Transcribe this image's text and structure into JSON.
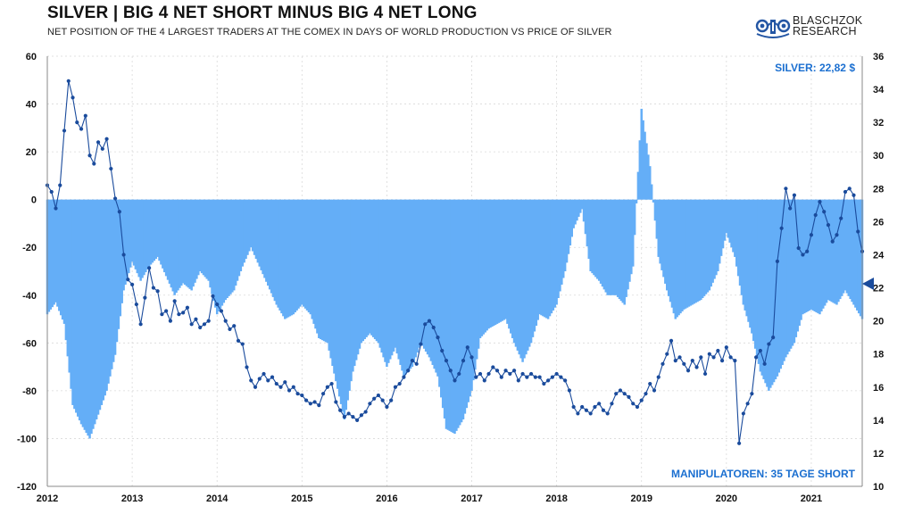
{
  "header": {
    "title": "SILVER | BIG 4 NET SHORT MINUS BIG 4 NET LONG",
    "subtitle": "NET POSITION OF THE 4 LARGEST TRADERS AT THE COMEX IN DAYS OF WORLD PRODUCTION VS PRICE OF SILVER"
  },
  "logo": {
    "line1": "BLASCHZOK",
    "line2": "RESEARCH"
  },
  "annotations": {
    "silver_price": "SILVER: 22,82 $",
    "manipulators": "MANIPULATOREN: 35 TAGE SHORT"
  },
  "colors": {
    "bars": "#64aef7",
    "price_line": "#1a4b9c",
    "annotation": "#1b6fd0",
    "grid": "#d9d9d9"
  },
  "chart_data": {
    "type": "bar",
    "title": "SILVER | BIG 4 NET SHORT MINUS BIG 4 NET LONG",
    "xlabel": "",
    "ylabel": "",
    "y2label": "",
    "ylim": [
      -120,
      60
    ],
    "y2lim": [
      10,
      36
    ],
    "x_ticks": [
      "2012",
      "2013",
      "2014",
      "2015",
      "2016",
      "2017",
      "2018",
      "2019",
      "2020",
      "2021"
    ],
    "y_ticks": [
      60,
      40,
      20,
      0,
      -20,
      -40,
      -60,
      -80,
      -100,
      -120
    ],
    "y2_ticks": [
      36,
      34,
      32,
      30,
      28,
      26,
      24,
      22,
      20,
      18,
      16,
      14,
      12,
      10
    ],
    "grid": true,
    "series": [
      {
        "type": "bar",
        "axis": "left",
        "points": [
          [
            2012.0,
            -48
          ],
          [
            2012.1,
            -43
          ],
          [
            2012.2,
            -52
          ],
          [
            2012.3,
            -86
          ],
          [
            2012.4,
            -94
          ],
          [
            2012.5,
            -100
          ],
          [
            2012.6,
            -90
          ],
          [
            2012.7,
            -80
          ],
          [
            2012.8,
            -65
          ],
          [
            2012.9,
            -38
          ],
          [
            2013.0,
            -26
          ],
          [
            2013.1,
            -34
          ],
          [
            2013.2,
            -28
          ],
          [
            2013.3,
            -24
          ],
          [
            2013.4,
            -32
          ],
          [
            2013.5,
            -40
          ],
          [
            2013.6,
            -35
          ],
          [
            2013.7,
            -38
          ],
          [
            2013.8,
            -30
          ],
          [
            2013.9,
            -34
          ],
          [
            2014.0,
            -48
          ],
          [
            2014.1,
            -42
          ],
          [
            2014.2,
            -38
          ],
          [
            2014.3,
            -28
          ],
          [
            2014.4,
            -20
          ],
          [
            2014.5,
            -28
          ],
          [
            2014.6,
            -36
          ],
          [
            2014.7,
            -44
          ],
          [
            2014.8,
            -50
          ],
          [
            2014.9,
            -48
          ],
          [
            2015.0,
            -44
          ],
          [
            2015.1,
            -48
          ],
          [
            2015.2,
            -58
          ],
          [
            2015.3,
            -60
          ],
          [
            2015.4,
            -76
          ],
          [
            2015.5,
            -92
          ],
          [
            2015.6,
            -72
          ],
          [
            2015.7,
            -60
          ],
          [
            2015.8,
            -56
          ],
          [
            2015.9,
            -60
          ],
          [
            2016.0,
            -70
          ],
          [
            2016.1,
            -62
          ],
          [
            2016.2,
            -74
          ],
          [
            2016.3,
            -70
          ],
          [
            2016.4,
            -60
          ],
          [
            2016.5,
            -66
          ],
          [
            2016.6,
            -74
          ],
          [
            2016.7,
            -96
          ],
          [
            2016.8,
            -98
          ],
          [
            2016.9,
            -92
          ],
          [
            2017.0,
            -80
          ],
          [
            2017.1,
            -58
          ],
          [
            2017.2,
            -54
          ],
          [
            2017.3,
            -52
          ],
          [
            2017.4,
            -50
          ],
          [
            2017.5,
            -60
          ],
          [
            2017.6,
            -68
          ],
          [
            2017.7,
            -60
          ],
          [
            2017.8,
            -48
          ],
          [
            2017.9,
            -50
          ],
          [
            2018.0,
            -44
          ],
          [
            2018.1,
            -30
          ],
          [
            2018.2,
            -12
          ],
          [
            2018.3,
            -4
          ],
          [
            2018.4,
            -30
          ],
          [
            2018.5,
            -34
          ],
          [
            2018.6,
            -40
          ],
          [
            2018.7,
            -40
          ],
          [
            2018.8,
            -44
          ],
          [
            2018.9,
            -28
          ],
          [
            2019.0,
            38
          ],
          [
            2019.1,
            14
          ],
          [
            2019.2,
            -24
          ],
          [
            2019.3,
            -38
          ],
          [
            2019.4,
            -50
          ],
          [
            2019.5,
            -46
          ],
          [
            2019.6,
            -44
          ],
          [
            2019.7,
            -42
          ],
          [
            2019.8,
            -38
          ],
          [
            2019.9,
            -30
          ],
          [
            2020.0,
            -14
          ],
          [
            2020.1,
            -24
          ],
          [
            2020.2,
            -44
          ],
          [
            2020.3,
            -56
          ],
          [
            2020.4,
            -72
          ],
          [
            2020.5,
            -80
          ],
          [
            2020.6,
            -74
          ],
          [
            2020.7,
            -66
          ],
          [
            2020.8,
            -60
          ],
          [
            2020.9,
            -48
          ],
          [
            2021.0,
            -46
          ],
          [
            2021.1,
            -48
          ],
          [
            2021.2,
            -42
          ],
          [
            2021.3,
            -44
          ],
          [
            2021.4,
            -38
          ],
          [
            2021.5,
            -44
          ],
          [
            2021.6,
            -50
          ]
        ]
      },
      {
        "type": "line",
        "axis": "right",
        "points": [
          [
            2012.0,
            28.2
          ],
          [
            2012.05,
            27.8
          ],
          [
            2012.1,
            26.8
          ],
          [
            2012.15,
            28.2
          ],
          [
            2012.2,
            31.5
          ],
          [
            2012.25,
            34.5
          ],
          [
            2012.3,
            33.5
          ],
          [
            2012.35,
            32.0
          ],
          [
            2012.4,
            31.6
          ],
          [
            2012.45,
            32.4
          ],
          [
            2012.5,
            30.0
          ],
          [
            2012.55,
            29.5
          ],
          [
            2012.6,
            30.8
          ],
          [
            2012.65,
            30.4
          ],
          [
            2012.7,
            31.0
          ],
          [
            2012.75,
            29.2
          ],
          [
            2012.8,
            27.4
          ],
          [
            2012.85,
            26.6
          ],
          [
            2012.9,
            24.0
          ],
          [
            2012.95,
            22.5
          ],
          [
            2013.0,
            22.2
          ],
          [
            2013.05,
            21.0
          ],
          [
            2013.1,
            19.8
          ],
          [
            2013.15,
            21.4
          ],
          [
            2013.2,
            23.2
          ],
          [
            2013.25,
            22.0
          ],
          [
            2013.3,
            21.8
          ],
          [
            2013.35,
            20.4
          ],
          [
            2013.4,
            20.6
          ],
          [
            2013.45,
            20.0
          ],
          [
            2013.5,
            21.2
          ],
          [
            2013.55,
            20.4
          ],
          [
            2013.6,
            20.5
          ],
          [
            2013.65,
            20.8
          ],
          [
            2013.7,
            19.8
          ],
          [
            2013.75,
            20.1
          ],
          [
            2013.8,
            19.6
          ],
          [
            2013.85,
            19.8
          ],
          [
            2013.9,
            20.0
          ],
          [
            2013.95,
            21.5
          ],
          [
            2014.0,
            21.0
          ],
          [
            2014.05,
            20.6
          ],
          [
            2014.1,
            20.0
          ],
          [
            2014.15,
            19.5
          ],
          [
            2014.2,
            19.7
          ],
          [
            2014.25,
            18.8
          ],
          [
            2014.3,
            18.6
          ],
          [
            2014.35,
            17.2
          ],
          [
            2014.4,
            16.4
          ],
          [
            2014.45,
            16.0
          ],
          [
            2014.5,
            16.5
          ],
          [
            2014.55,
            16.8
          ],
          [
            2014.6,
            16.4
          ],
          [
            2014.65,
            16.6
          ],
          [
            2014.7,
            16.2
          ],
          [
            2014.75,
            16.0
          ],
          [
            2014.8,
            16.3
          ],
          [
            2014.85,
            15.8
          ],
          [
            2014.9,
            16.0
          ],
          [
            2014.95,
            15.6
          ],
          [
            2015.0,
            15.5
          ],
          [
            2015.05,
            15.2
          ],
          [
            2015.1,
            15.0
          ],
          [
            2015.15,
            15.1
          ],
          [
            2015.2,
            14.9
          ],
          [
            2015.25,
            15.6
          ],
          [
            2015.3,
            16.0
          ],
          [
            2015.35,
            16.2
          ],
          [
            2015.4,
            15.1
          ],
          [
            2015.45,
            14.6
          ],
          [
            2015.5,
            14.2
          ],
          [
            2015.55,
            14.4
          ],
          [
            2015.6,
            14.2
          ],
          [
            2015.65,
            14.0
          ],
          [
            2015.7,
            14.3
          ],
          [
            2015.75,
            14.5
          ],
          [
            2015.8,
            15.0
          ],
          [
            2015.85,
            15.3
          ],
          [
            2015.9,
            15.5
          ],
          [
            2015.95,
            15.2
          ],
          [
            2016.0,
            14.8
          ],
          [
            2016.05,
            15.2
          ],
          [
            2016.1,
            16.0
          ],
          [
            2016.15,
            16.2
          ],
          [
            2016.2,
            16.6
          ],
          [
            2016.25,
            17.0
          ],
          [
            2016.3,
            17.6
          ],
          [
            2016.35,
            17.4
          ],
          [
            2016.4,
            18.6
          ],
          [
            2016.45,
            19.8
          ],
          [
            2016.5,
            20.0
          ],
          [
            2016.55,
            19.6
          ],
          [
            2016.6,
            19.0
          ],
          [
            2016.65,
            18.2
          ],
          [
            2016.7,
            17.6
          ],
          [
            2016.75,
            17.0
          ],
          [
            2016.8,
            16.4
          ],
          [
            2016.85,
            16.8
          ],
          [
            2016.9,
            17.6
          ],
          [
            2016.95,
            18.4
          ],
          [
            2017.0,
            17.8
          ],
          [
            2017.05,
            16.6
          ],
          [
            2017.1,
            16.8
          ],
          [
            2017.15,
            16.4
          ],
          [
            2017.2,
            16.8
          ],
          [
            2017.25,
            17.2
          ],
          [
            2017.3,
            17.0
          ],
          [
            2017.35,
            16.6
          ],
          [
            2017.4,
            17.0
          ],
          [
            2017.45,
            16.8
          ],
          [
            2017.5,
            17.0
          ],
          [
            2017.55,
            16.4
          ],
          [
            2017.6,
            16.8
          ],
          [
            2017.65,
            16.6
          ],
          [
            2017.7,
            16.8
          ],
          [
            2017.75,
            16.6
          ],
          [
            2017.8,
            16.6
          ],
          [
            2017.85,
            16.2
          ],
          [
            2017.9,
            16.4
          ],
          [
            2017.95,
            16.6
          ],
          [
            2018.0,
            16.8
          ],
          [
            2018.05,
            16.6
          ],
          [
            2018.1,
            16.4
          ],
          [
            2018.15,
            15.8
          ],
          [
            2018.2,
            14.8
          ],
          [
            2018.25,
            14.4
          ],
          [
            2018.3,
            14.8
          ],
          [
            2018.35,
            14.6
          ],
          [
            2018.4,
            14.4
          ],
          [
            2018.45,
            14.8
          ],
          [
            2018.5,
            15.0
          ],
          [
            2018.55,
            14.6
          ],
          [
            2018.6,
            14.4
          ],
          [
            2018.65,
            15.0
          ],
          [
            2018.7,
            15.6
          ],
          [
            2018.75,
            15.8
          ],
          [
            2018.8,
            15.6
          ],
          [
            2018.85,
            15.4
          ],
          [
            2018.9,
            15.0
          ],
          [
            2018.95,
            14.8
          ],
          [
            2019.0,
            15.2
          ],
          [
            2019.05,
            15.6
          ],
          [
            2019.1,
            16.2
          ],
          [
            2019.15,
            15.8
          ],
          [
            2019.2,
            16.6
          ],
          [
            2019.25,
            17.4
          ],
          [
            2019.3,
            18.0
          ],
          [
            2019.35,
            18.8
          ],
          [
            2019.4,
            17.6
          ],
          [
            2019.45,
            17.8
          ],
          [
            2019.5,
            17.4
          ],
          [
            2019.55,
            17.0
          ],
          [
            2019.6,
            17.6
          ],
          [
            2019.65,
            17.2
          ],
          [
            2019.7,
            17.8
          ],
          [
            2019.75,
            16.8
          ],
          [
            2019.8,
            18.0
          ],
          [
            2019.85,
            17.8
          ],
          [
            2019.9,
            18.2
          ],
          [
            2019.95,
            17.6
          ],
          [
            2020.0,
            18.4
          ],
          [
            2020.05,
            17.8
          ],
          [
            2020.1,
            17.6
          ],
          [
            2020.15,
            12.6
          ],
          [
            2020.2,
            14.4
          ],
          [
            2020.25,
            15.0
          ],
          [
            2020.3,
            15.6
          ],
          [
            2020.35,
            17.8
          ],
          [
            2020.4,
            18.2
          ],
          [
            2020.45,
            17.4
          ],
          [
            2020.5,
            18.6
          ],
          [
            2020.55,
            19.0
          ],
          [
            2020.6,
            23.6
          ],
          [
            2020.65,
            25.6
          ],
          [
            2020.7,
            28.0
          ],
          [
            2020.75,
            26.8
          ],
          [
            2020.8,
            27.6
          ],
          [
            2020.85,
            24.4
          ],
          [
            2020.9,
            24.0
          ],
          [
            2020.95,
            24.2
          ],
          [
            2021.0,
            25.2
          ],
          [
            2021.05,
            26.4
          ],
          [
            2021.1,
            27.2
          ],
          [
            2021.15,
            26.6
          ],
          [
            2021.2,
            25.8
          ],
          [
            2021.25,
            24.8
          ],
          [
            2021.3,
            25.2
          ],
          [
            2021.35,
            26.2
          ],
          [
            2021.4,
            27.8
          ],
          [
            2021.45,
            28.0
          ],
          [
            2021.5,
            27.6
          ],
          [
            2021.55,
            25.4
          ],
          [
            2021.6,
            24.2
          ],
          [
            2021.65,
            23.4
          ],
          [
            2021.7,
            22.8
          ],
          [
            2021.75,
            22.6
          ],
          [
            2021.8,
            23.6
          ],
          [
            2021.85,
            22.6
          ],
          [
            2021.9,
            21.8
          ],
          [
            2021.95,
            22.4
          ],
          [
            2022.0,
            22.8
          ]
        ]
      }
    ]
  }
}
